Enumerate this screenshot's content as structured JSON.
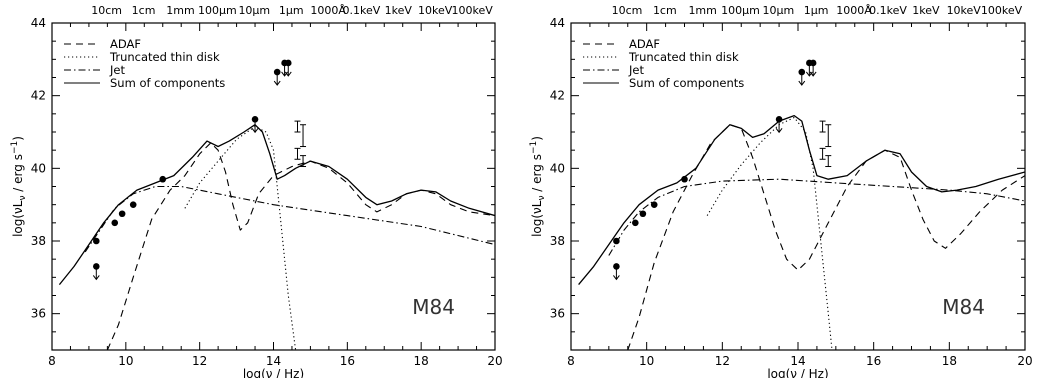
{
  "chart_data": [
    {
      "type": "line",
      "xlabel": "log(ν / Hz)",
      "ylabel": "log(νL_ν / erg s⁻¹)",
      "xlim": [
        8,
        20
      ],
      "ylim": [
        35,
        44
      ],
      "x_ticks": [
        8,
        10,
        12,
        14,
        16,
        18,
        20
      ],
      "y_ticks": [
        36,
        38,
        40,
        42,
        44
      ],
      "top_axis_labels": [
        {
          "text": "10cm",
          "x": 9.48
        },
        {
          "text": "1cm",
          "x": 10.48
        },
        {
          "text": "1mm",
          "x": 11.48
        },
        {
          "text": "100μm",
          "x": 12.48
        },
        {
          "text": "10μm",
          "x": 13.48
        },
        {
          "text": "1μm",
          "x": 14.48
        },
        {
          "text": "1000Å",
          "x": 15.48
        },
        {
          "text": "0.1keV",
          "x": 16.38
        },
        {
          "text": "1keV",
          "x": 17.38
        },
        {
          "text": "10keV",
          "x": 18.38
        },
        {
          "text": "100keV",
          "x": 19.38
        }
      ],
      "panel_label": "M84",
      "legend_placement": "top-left",
      "legend": [
        {
          "label": "ADAF",
          "style": "dashed"
        },
        {
          "label": "Truncated thin disk",
          "style": "dotted"
        },
        {
          "label": "Jet",
          "style": "dashdot"
        },
        {
          "label": "Sum of components",
          "style": "solid"
        }
      ],
      "series": [
        {
          "style": "dashed",
          "points": [
            [
              9.5,
              35
            ],
            [
              9.8,
              35.7
            ],
            [
              10.2,
              37
            ],
            [
              10.7,
              38.6
            ],
            [
              11.2,
              39.4
            ],
            [
              11.6,
              39.8
            ],
            [
              12.0,
              40.4
            ],
            [
              12.3,
              40.7
            ],
            [
              12.5,
              40.5
            ],
            [
              12.7,
              39.9
            ],
            [
              12.9,
              39.0
            ],
            [
              13.1,
              38.3
            ],
            [
              13.3,
              38.5
            ],
            [
              13.6,
              39.3
            ],
            [
              14.0,
              39.8
            ],
            [
              14.5,
              40.05
            ],
            [
              15.0,
              40.2
            ],
            [
              15.5,
              40.0
            ],
            [
              16.0,
              39.6
            ],
            [
              16.5,
              39.0
            ],
            [
              16.8,
              38.8
            ],
            [
              17.2,
              39.0
            ],
            [
              17.6,
              39.3
            ],
            [
              18.0,
              39.4
            ],
            [
              18.4,
              39.3
            ],
            [
              18.8,
              39.0
            ],
            [
              19.3,
              38.8
            ],
            [
              20,
              38.7
            ]
          ]
        },
        {
          "style": "dotted",
          "points": [
            [
              11.6,
              38.9
            ],
            [
              12.0,
              39.6
            ],
            [
              12.5,
              40.2
            ],
            [
              13.0,
              40.8
            ],
            [
              13.5,
              41.15
            ],
            [
              13.8,
              41.0
            ],
            [
              14.0,
              40.5
            ],
            [
              14.2,
              38.5
            ],
            [
              14.4,
              36.5
            ],
            [
              14.6,
              35
            ]
          ]
        },
        {
          "style": "dashdot",
          "points": [
            [
              8.9,
              37.7
            ],
            [
              9.3,
              38.3
            ],
            [
              9.7,
              38.9
            ],
            [
              10.2,
              39.3
            ],
            [
              10.8,
              39.5
            ],
            [
              11.5,
              39.5
            ],
            [
              12.5,
              39.3
            ],
            [
              14.0,
              39.0
            ],
            [
              16.0,
              38.7
            ],
            [
              18.0,
              38.4
            ],
            [
              20,
              37.9
            ]
          ]
        },
        {
          "style": "solid",
          "points": [
            [
              8.2,
              36.8
            ],
            [
              8.6,
              37.3
            ],
            [
              9.0,
              37.9
            ],
            [
              9.4,
              38.5
            ],
            [
              9.8,
              39.0
            ],
            [
              10.3,
              39.4
            ],
            [
              10.8,
              39.6
            ],
            [
              11.3,
              39.8
            ],
            [
              11.8,
              40.3
            ],
            [
              12.2,
              40.75
            ],
            [
              12.5,
              40.6
            ],
            [
              12.8,
              40.75
            ],
            [
              13.2,
              41.0
            ],
            [
              13.5,
              41.2
            ],
            [
              13.7,
              41.0
            ],
            [
              13.9,
              40.4
            ],
            [
              14.1,
              39.7
            ],
            [
              14.3,
              39.8
            ],
            [
              14.6,
              40.0
            ],
            [
              15.0,
              40.2
            ],
            [
              15.5,
              40.05
            ],
            [
              16.0,
              39.7
            ],
            [
              16.5,
              39.2
            ],
            [
              16.8,
              39.0
            ],
            [
              17.2,
              39.1
            ],
            [
              17.6,
              39.3
            ],
            [
              18.0,
              39.4
            ],
            [
              18.4,
              39.35
            ],
            [
              18.8,
              39.1
            ],
            [
              19.3,
              38.9
            ],
            [
              20,
              38.7
            ]
          ]
        }
      ],
      "detections": [
        [
          9.2,
          38.0
        ],
        [
          9.7,
          38.5
        ],
        [
          9.9,
          38.75
        ],
        [
          10.2,
          39.0
        ],
        [
          11.0,
          39.7
        ]
      ],
      "upper_limits": [
        [
          9.2,
          37.3
        ],
        [
          13.5,
          41.35
        ],
        [
          14.1,
          42.65
        ],
        [
          14.3,
          42.9
        ],
        [
          14.4,
          42.9
        ]
      ],
      "error_bars": [
        [
          14.65,
          41.0,
          41.3
        ],
        [
          14.8,
          40.6,
          41.2
        ],
        [
          14.65,
          40.25,
          40.55
        ],
        [
          14.8,
          40.05,
          40.35
        ]
      ]
    },
    {
      "type": "line",
      "xlabel": "log(ν / Hz)",
      "ylabel": "log(νL_ν / erg s⁻¹)",
      "xlim": [
        8,
        20
      ],
      "ylim": [
        35,
        44
      ],
      "x_ticks": [
        8,
        10,
        12,
        14,
        16,
        18,
        20
      ],
      "y_ticks": [
        36,
        38,
        40,
        42,
        44
      ],
      "top_axis_labels": [
        {
          "text": "10cm",
          "x": 9.48
        },
        {
          "text": "1cm",
          "x": 10.48
        },
        {
          "text": "1mm",
          "x": 11.48
        },
        {
          "text": "100μm",
          "x": 12.48
        },
        {
          "text": "10μm",
          "x": 13.48
        },
        {
          "text": "1μm",
          "x": 14.48
        },
        {
          "text": "1000Å",
          "x": 15.48
        },
        {
          "text": "0.1keV",
          "x": 16.38
        },
        {
          "text": "1keV",
          "x": 17.38
        },
        {
          "text": "10keV",
          "x": 18.38
        },
        {
          "text": "100keV",
          "x": 19.38
        }
      ],
      "panel_label": "M84",
      "legend_placement": "top-left",
      "legend": [
        {
          "label": "ADAF",
          "style": "dashed"
        },
        {
          "label": "Truncated thin disk",
          "style": "dotted"
        },
        {
          "label": "Jet",
          "style": "dashdot"
        },
        {
          "label": "Sum of components",
          "style": "solid"
        }
      ],
      "series": [
        {
          "style": "dashed",
          "points": [
            [
              9.5,
              35
            ],
            [
              9.8,
              35.9
            ],
            [
              10.2,
              37.4
            ],
            [
              10.7,
              38.8
            ],
            [
              11.2,
              39.8
            ],
            [
              11.7,
              40.7
            ],
            [
              12.2,
              41.2
            ],
            [
              12.5,
              41.1
            ],
            [
              12.8,
              40.3
            ],
            [
              13.1,
              39.3
            ],
            [
              13.4,
              38.3
            ],
            [
              13.7,
              37.5
            ],
            [
              14.0,
              37.2
            ],
            [
              14.3,
              37.5
            ],
            [
              14.8,
              38.5
            ],
            [
              15.3,
              39.5
            ],
            [
              15.8,
              40.2
            ],
            [
              16.3,
              40.5
            ],
            [
              16.7,
              40.3
            ],
            [
              17.0,
              39.4
            ],
            [
              17.3,
              38.6
            ],
            [
              17.6,
              38.0
            ],
            [
              17.9,
              37.8
            ],
            [
              18.3,
              38.2
            ],
            [
              18.8,
              38.8
            ],
            [
              19.4,
              39.4
            ],
            [
              20,
              39.8
            ]
          ]
        },
        {
          "style": "dotted",
          "points": [
            [
              11.6,
              38.7
            ],
            [
              12.0,
              39.4
            ],
            [
              12.5,
              40.1
            ],
            [
              13.0,
              40.7
            ],
            [
              13.5,
              41.2
            ],
            [
              13.9,
              41.4
            ],
            [
              14.2,
              41.0
            ],
            [
              14.4,
              40.0
            ],
            [
              14.6,
              38.0
            ],
            [
              14.8,
              36.0
            ],
            [
              14.9,
              35
            ]
          ]
        },
        {
          "style": "dashdot",
          "points": [
            [
              9.0,
              37.6
            ],
            [
              9.4,
              38.3
            ],
            [
              9.8,
              38.8
            ],
            [
              10.3,
              39.2
            ],
            [
              11.0,
              39.5
            ],
            [
              12.0,
              39.65
            ],
            [
              13.5,
              39.7
            ],
            [
              15.0,
              39.6
            ],
            [
              16.5,
              39.5
            ],
            [
              18.0,
              39.4
            ],
            [
              19.0,
              39.3
            ],
            [
              20,
              39.1
            ]
          ]
        },
        {
          "style": "solid",
          "points": [
            [
              8.2,
              36.8
            ],
            [
              8.6,
              37.3
            ],
            [
              9.0,
              37.9
            ],
            [
              9.4,
              38.5
            ],
            [
              9.8,
              39.0
            ],
            [
              10.3,
              39.4
            ],
            [
              10.8,
              39.6
            ],
            [
              11.3,
              40.0
            ],
            [
              11.8,
              40.8
            ],
            [
              12.2,
              41.2
            ],
            [
              12.5,
              41.1
            ],
            [
              12.8,
              40.85
            ],
            [
              13.1,
              40.95
            ],
            [
              13.5,
              41.3
            ],
            [
              13.9,
              41.45
            ],
            [
              14.1,
              41.3
            ],
            [
              14.3,
              40.5
            ],
            [
              14.5,
              39.8
            ],
            [
              14.8,
              39.7
            ],
            [
              15.3,
              39.8
            ],
            [
              15.8,
              40.2
            ],
            [
              16.3,
              40.5
            ],
            [
              16.7,
              40.4
            ],
            [
              17.0,
              39.9
            ],
            [
              17.4,
              39.5
            ],
            [
              17.8,
              39.35
            ],
            [
              18.2,
              39.4
            ],
            [
              18.7,
              39.5
            ],
            [
              19.3,
              39.7
            ],
            [
              20,
              39.9
            ]
          ]
        }
      ],
      "detections": [
        [
          9.2,
          38.0
        ],
        [
          9.7,
          38.5
        ],
        [
          9.9,
          38.75
        ],
        [
          10.2,
          39.0
        ],
        [
          11.0,
          39.7
        ]
      ],
      "upper_limits": [
        [
          9.2,
          37.3
        ],
        [
          13.5,
          41.35
        ],
        [
          14.1,
          42.65
        ],
        [
          14.3,
          42.9
        ],
        [
          14.4,
          42.9
        ]
      ],
      "error_bars": [
        [
          14.65,
          41.0,
          41.3
        ],
        [
          14.8,
          40.6,
          41.2
        ],
        [
          14.65,
          40.25,
          40.55
        ],
        [
          14.8,
          40.05,
          40.35
        ]
      ]
    }
  ]
}
